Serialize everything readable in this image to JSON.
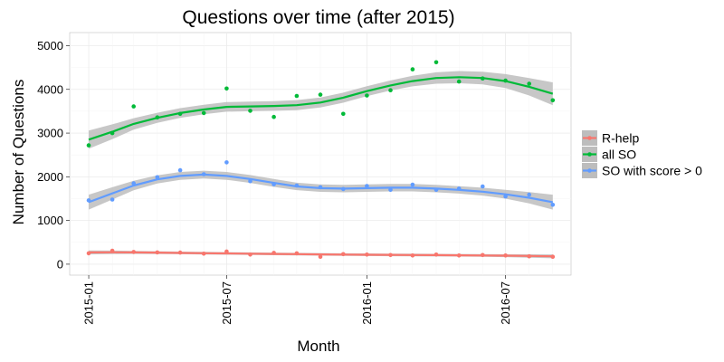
{
  "chart_data": {
    "type": "scatter",
    "title": "Questions over time (after 2015)",
    "xlabel": "Month",
    "ylabel": "Number of Questions",
    "x_range": [
      "2014-12-07",
      "2016-09-25"
    ],
    "ylim": [
      -250,
      5300
    ],
    "y_ticks": [
      0,
      1000,
      2000,
      3000,
      4000,
      5000
    ],
    "x_ticks": [
      "2015-01-01",
      "2015-07-01",
      "2016-01-01",
      "2016-07-01"
    ],
    "x_tick_labels": [
      "2015-01",
      "2015-07",
      "2016-01",
      "2016-07"
    ],
    "grid": true,
    "smoothing": "loess with confidence band",
    "legend_position": "right",
    "months": [
      "2015-01-01",
      "2015-02-01",
      "2015-03-01",
      "2015-04-01",
      "2015-05-01",
      "2015-06-01",
      "2015-07-01",
      "2015-08-01",
      "2015-09-01",
      "2015-10-01",
      "2015-11-01",
      "2015-12-01",
      "2016-01-01",
      "2016-02-01",
      "2016-03-01",
      "2016-04-01",
      "2016-05-01",
      "2016-06-01",
      "2016-07-01",
      "2016-08-01",
      "2016-09-01"
    ],
    "series": [
      {
        "name": "R-help",
        "color": "#F8766D",
        "values": [
          250,
          310,
          280,
          270,
          265,
          240,
          290,
          220,
          260,
          250,
          170,
          230,
          220,
          210,
          200,
          220,
          200,
          210,
          200,
          180,
          170
        ],
        "smooth": [
          270,
          272,
          270,
          265,
          258,
          252,
          246,
          240,
          235,
          230,
          225,
          220,
          216,
          213,
          210,
          207,
          204,
          200,
          195,
          188,
          180
        ],
        "band": [
          45,
          40,
          35,
          32,
          30,
          30,
          30,
          30,
          30,
          30,
          30,
          30,
          30,
          30,
          30,
          30,
          30,
          30,
          32,
          38,
          45
        ]
      },
      {
        "name": "all SO",
        "color": "#00BA38",
        "values": [
          2720,
          3000,
          3610,
          3360,
          3440,
          3460,
          4020,
          3510,
          3370,
          3850,
          3880,
          3440,
          3860,
          3980,
          4460,
          4620,
          4180,
          4250,
          4200,
          4130,
          3750
        ],
        "smooth": [
          2850,
          3030,
          3210,
          3350,
          3460,
          3540,
          3600,
          3610,
          3620,
          3640,
          3700,
          3810,
          3960,
          4090,
          4190,
          4260,
          4280,
          4260,
          4190,
          4060,
          3900
        ],
        "band": [
          210,
          170,
          130,
          115,
          110,
          110,
          110,
          110,
          110,
          115,
          115,
          115,
          115,
          115,
          120,
          130,
          140,
          145,
          160,
          200,
          260
        ]
      },
      {
        "name": "SO with score > 0",
        "color": "#619CFF",
        "values": [
          1460,
          1480,
          1850,
          1990,
          2150,
          2060,
          2330,
          1900,
          1830,
          1800,
          1760,
          1720,
          1790,
          1700,
          1820,
          1700,
          1730,
          1780,
          1550,
          1590,
          1360
        ],
        "smooth": [
          1420,
          1620,
          1800,
          1940,
          2020,
          2050,
          2020,
          1950,
          1860,
          1780,
          1740,
          1730,
          1740,
          1750,
          1750,
          1730,
          1700,
          1660,
          1600,
          1520,
          1420
        ],
        "band": [
          170,
          140,
          110,
          95,
          90,
          90,
          90,
          90,
          90,
          85,
          85,
          85,
          85,
          85,
          85,
          85,
          85,
          90,
          100,
          130,
          170
        ]
      }
    ],
    "colors": {
      "panel_background": "#ffffff",
      "grid": "#ebebeb",
      "band": "#bdbdbd"
    }
  }
}
